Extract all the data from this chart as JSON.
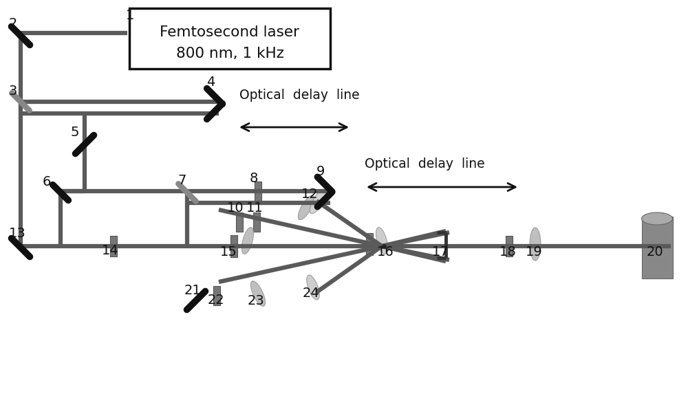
{
  "fig_width": 10.0,
  "fig_height": 5.73,
  "bg_color": "#ffffff",
  "beam_color": "#5a5a5a",
  "beam_lw": 4.5,
  "mirror_color": "#111111",
  "gray_mirror_color": "#888888",
  "dark_comp_color": "#777777",
  "light_comp_color": "#b8b8b8",
  "detector_color": "#888888",
  "box_text_line1": "Femtosecond laser",
  "box_text_line2": "800 nm, 1 kHz",
  "delay_line1_text": "Optical  delay  line",
  "delay_line2_text": "Optical  delay  line",
  "label_fontsize": 14
}
